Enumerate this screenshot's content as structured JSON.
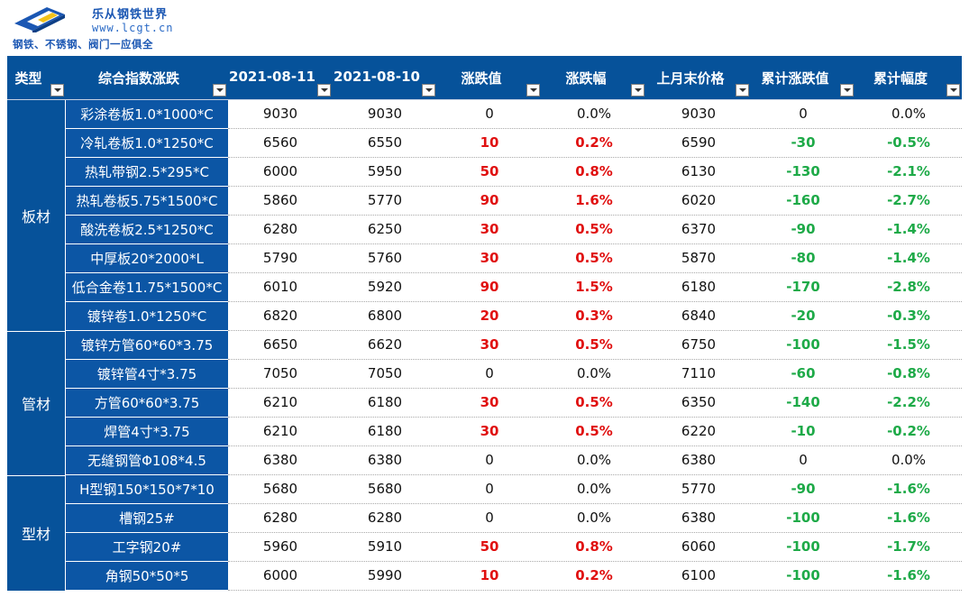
{
  "brand": {
    "name": "乐从钢铁世界",
    "url": "www.lcgt.cn",
    "slogan": "钢铁、不锈钢、阀门一应俱全"
  },
  "colors": {
    "header_bg": "#06529a",
    "name_bg": "#0c56a5",
    "up": "#e01010",
    "down": "#1eaa48"
  },
  "columns": [
    {
      "label": "类型"
    },
    {
      "label": "综合指数涨跌"
    },
    {
      "label": "2021-08-11"
    },
    {
      "label": "2021-08-10"
    },
    {
      "label": "涨跌值"
    },
    {
      "label": "涨跌幅"
    },
    {
      "label": "上月末价格"
    },
    {
      "label": "累计涨跌值"
    },
    {
      "label": "累计幅度"
    }
  ],
  "groups": [
    {
      "label": "板材",
      "rows": 8
    },
    {
      "label": "管材",
      "rows": 5
    },
    {
      "label": "型材",
      "rows": 4
    }
  ],
  "rows": [
    {
      "name": "彩涂卷板1.0*1000*C",
      "d1": "9030",
      "d2": "9030",
      "chg": "0",
      "pct": "0.0%",
      "last": "9030",
      "cum": "0",
      "cumpct": "0.0%",
      "dir": "flat",
      "cumdir": "flat"
    },
    {
      "name": "冷轧卷板1.0*1250*C",
      "d1": "6560",
      "d2": "6550",
      "chg": "10",
      "pct": "0.2%",
      "last": "6590",
      "cum": "-30",
      "cumpct": "-0.5%",
      "dir": "up",
      "cumdir": "down"
    },
    {
      "name": "热轧带钢2.5*295*C",
      "d1": "6000",
      "d2": "5950",
      "chg": "50",
      "pct": "0.8%",
      "last": "6130",
      "cum": "-130",
      "cumpct": "-2.1%",
      "dir": "up",
      "cumdir": "down"
    },
    {
      "name": "热轧卷板5.75*1500*C",
      "d1": "5860",
      "d2": "5770",
      "chg": "90",
      "pct": "1.6%",
      "last": "6020",
      "cum": "-160",
      "cumpct": "-2.7%",
      "dir": "up",
      "cumdir": "down"
    },
    {
      "name": "酸洗卷板2.5*1250*C",
      "d1": "6280",
      "d2": "6250",
      "chg": "30",
      "pct": "0.5%",
      "last": "6370",
      "cum": "-90",
      "cumpct": "-1.4%",
      "dir": "up",
      "cumdir": "down"
    },
    {
      "name": "中厚板20*2000*L",
      "d1": "5790",
      "d2": "5760",
      "chg": "30",
      "pct": "0.5%",
      "last": "5870",
      "cum": "-80",
      "cumpct": "-1.4%",
      "dir": "up",
      "cumdir": "down"
    },
    {
      "name": "低合金卷11.75*1500*C",
      "d1": "6010",
      "d2": "5920",
      "chg": "90",
      "pct": "1.5%",
      "last": "6180",
      "cum": "-170",
      "cumpct": "-2.8%",
      "dir": "up",
      "cumdir": "down"
    },
    {
      "name": "镀锌卷1.0*1250*C",
      "d1": "6820",
      "d2": "6800",
      "chg": "20",
      "pct": "0.3%",
      "last": "6840",
      "cum": "-20",
      "cumpct": "-0.3%",
      "dir": "up",
      "cumdir": "down"
    },
    {
      "name": "镀锌方管60*60*3.75",
      "d1": "6650",
      "d2": "6620",
      "chg": "30",
      "pct": "0.5%",
      "last": "6750",
      "cum": "-100",
      "cumpct": "-1.5%",
      "dir": "up",
      "cumdir": "down"
    },
    {
      "name": "镀锌管4寸*3.75",
      "d1": "7050",
      "d2": "7050",
      "chg": "0",
      "pct": "0.0%",
      "last": "7110",
      "cum": "-60",
      "cumpct": "-0.8%",
      "dir": "flat",
      "cumdir": "down"
    },
    {
      "name": "方管60*60*3.75",
      "d1": "6210",
      "d2": "6180",
      "chg": "30",
      "pct": "0.5%",
      "last": "6350",
      "cum": "-140",
      "cumpct": "-2.2%",
      "dir": "up",
      "cumdir": "down"
    },
    {
      "name": "焊管4寸*3.75",
      "d1": "6210",
      "d2": "6180",
      "chg": "30",
      "pct": "0.5%",
      "last": "6220",
      "cum": "-10",
      "cumpct": "-0.2%",
      "dir": "up",
      "cumdir": "down"
    },
    {
      "name": "无缝钢管Φ108*4.5",
      "d1": "6380",
      "d2": "6380",
      "chg": "0",
      "pct": "0.0%",
      "last": "6380",
      "cum": "0",
      "cumpct": "0.0%",
      "dir": "flat",
      "cumdir": "flat"
    },
    {
      "name": "H型钢150*150*7*10",
      "d1": "5680",
      "d2": "5680",
      "chg": "0",
      "pct": "0.0%",
      "last": "5770",
      "cum": "-90",
      "cumpct": "-1.6%",
      "dir": "flat",
      "cumdir": "down"
    },
    {
      "name": "槽钢25#",
      "d1": "6280",
      "d2": "6280",
      "chg": "0",
      "pct": "0.0%",
      "last": "6380",
      "cum": "-100",
      "cumpct": "-1.6%",
      "dir": "flat",
      "cumdir": "down"
    },
    {
      "name": "工字钢20#",
      "d1": "5960",
      "d2": "5910",
      "chg": "50",
      "pct": "0.8%",
      "last": "6060",
      "cum": "-100",
      "cumpct": "-1.7%",
      "dir": "up",
      "cumdir": "down"
    },
    {
      "name": "角钢50*50*5",
      "d1": "6000",
      "d2": "5990",
      "chg": "10",
      "pct": "0.2%",
      "last": "6100",
      "cum": "-100",
      "cumpct": "-1.6%",
      "dir": "up",
      "cumdir": "down"
    }
  ]
}
